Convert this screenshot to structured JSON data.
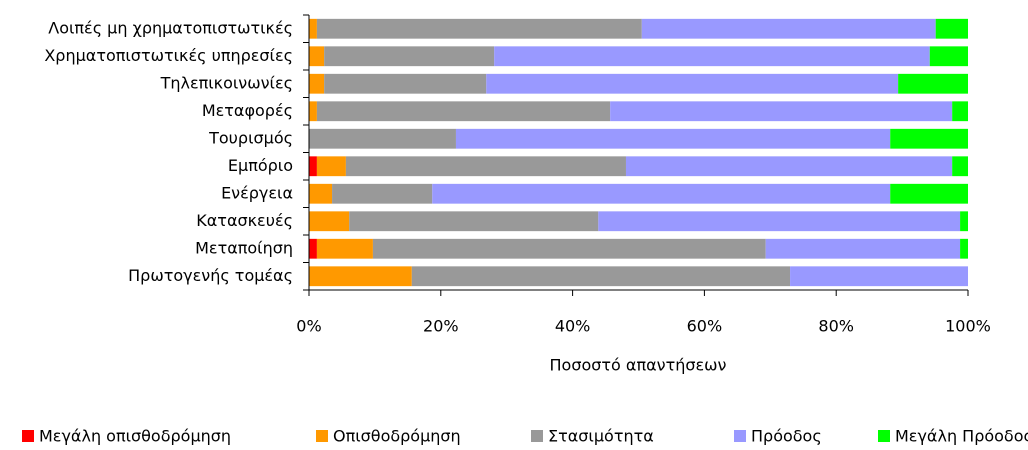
{
  "chart_data": {
    "type": "stacked-barh",
    "categories": [
      "Λοιπές μη χρηματοπιστωτικές",
      "Χρηματοπιστωτικές υπηρεσίες",
      "Τηλεπικοινωνίες",
      "Μεταφορές",
      "Τουρισμός",
      "Εμπόριο",
      "Ενέργεια",
      "Κατασκευές",
      "Μεταποίηση",
      "Πρωτογενής τομέας"
    ],
    "series": [
      {
        "name": "Μεγάλη οπισθοδρόμηση",
        "color": "#ff0000",
        "values": [
          0,
          0,
          0,
          0,
          0,
          1.2,
          0,
          0,
          1.2,
          0
        ]
      },
      {
        "name": "Οπισθοδρόμηση",
        "color": "#ff9900",
        "values": [
          1.2,
          2.3,
          2.3,
          1.2,
          0,
          4.4,
          3.5,
          6.1,
          8.5,
          15.6
        ]
      },
      {
        "name": "Στασιμότητα",
        "color": "#999999",
        "values": [
          49.3,
          25.8,
          24.6,
          44.5,
          22.3,
          42.5,
          15.2,
          37.8,
          59.6,
          57.4
        ]
      },
      {
        "name": "Πρόοδος",
        "color": "#9999ff",
        "values": [
          44.6,
          66.1,
          62.5,
          51.9,
          65.9,
          49.5,
          69.5,
          54.9,
          29.5,
          27.0
        ]
      },
      {
        "name": "Μεγάλη Πρόοδος",
        "color": "#00ff00",
        "values": [
          4.9,
          5.8,
          10.6,
          2.4,
          11.8,
          2.4,
          11.8,
          1.2,
          1.2,
          0
        ]
      }
    ],
    "xlabel": "Ποσοστό απαντήσεων",
    "xlim": [
      0,
      100
    ],
    "xticks": [
      {
        "value": 0,
        "label": "0%"
      },
      {
        "value": 20,
        "label": "20%"
      },
      {
        "value": 40,
        "label": "40%"
      },
      {
        "value": 60,
        "label": "60%"
      },
      {
        "value": 80,
        "label": "80%"
      },
      {
        "value": 100,
        "label": "100%"
      }
    ],
    "legend": "bottom"
  }
}
